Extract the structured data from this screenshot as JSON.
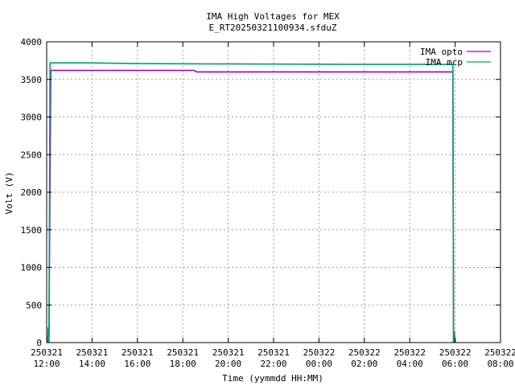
{
  "chart_data": {
    "type": "line",
    "title": "IMA High Voltages for MEX",
    "subtitle": "E_RT20250321100934.sfduZ",
    "xlabel": "Time (yymmdd HH:MM)",
    "ylabel": "Volt (V)",
    "xlim_hours": [
      0,
      20
    ],
    "ylim": [
      0,
      4000
    ],
    "y_ticks": [
      0,
      500,
      1000,
      1500,
      2000,
      2500,
      3000,
      3500,
      4000
    ],
    "x_ticks": [
      {
        "h": 0,
        "date": "250321",
        "time": "12:00"
      },
      {
        "h": 2,
        "date": "250321",
        "time": "14:00"
      },
      {
        "h": 4,
        "date": "250321",
        "time": "16:00"
      },
      {
        "h": 6,
        "date": "250321",
        "time": "18:00"
      },
      {
        "h": 8,
        "date": "250321",
        "time": "20:00"
      },
      {
        "h": 10,
        "date": "250321",
        "time": "22:00"
      },
      {
        "h": 12,
        "date": "250322",
        "time": "00:00"
      },
      {
        "h": 14,
        "date": "250322",
        "time": "02:00"
      },
      {
        "h": 16,
        "date": "250322",
        "time": "04:00"
      },
      {
        "h": 18,
        "date": "250322",
        "time": "06:00"
      },
      {
        "h": 20,
        "date": "250322",
        "time": "08:00"
      }
    ],
    "grid": true,
    "legend_position": "top-right",
    "series": [
      {
        "name": "IMA opto",
        "color": "#9400d3",
        "points": [
          [
            0.05,
            0
          ],
          [
            0.07,
            200
          ],
          [
            0.1,
            0
          ],
          [
            0.18,
            3620
          ],
          [
            4.0,
            3620
          ],
          [
            6.5,
            3620
          ],
          [
            6.6,
            3600
          ],
          [
            12.0,
            3600
          ],
          [
            17.9,
            3600
          ],
          [
            17.93,
            0
          ],
          [
            17.96,
            150
          ],
          [
            18.0,
            0
          ]
        ]
      },
      {
        "name": "IMA mcp",
        "color": "#009e73",
        "points": [
          [
            0.05,
            0
          ],
          [
            0.07,
            200
          ],
          [
            0.1,
            0
          ],
          [
            0.15,
            3720
          ],
          [
            2.0,
            3720
          ],
          [
            4.0,
            3710
          ],
          [
            9.0,
            3705
          ],
          [
            14.0,
            3700
          ],
          [
            17.9,
            3700
          ],
          [
            17.93,
            0
          ],
          [
            17.96,
            150
          ],
          [
            18.0,
            0
          ]
        ]
      }
    ]
  }
}
